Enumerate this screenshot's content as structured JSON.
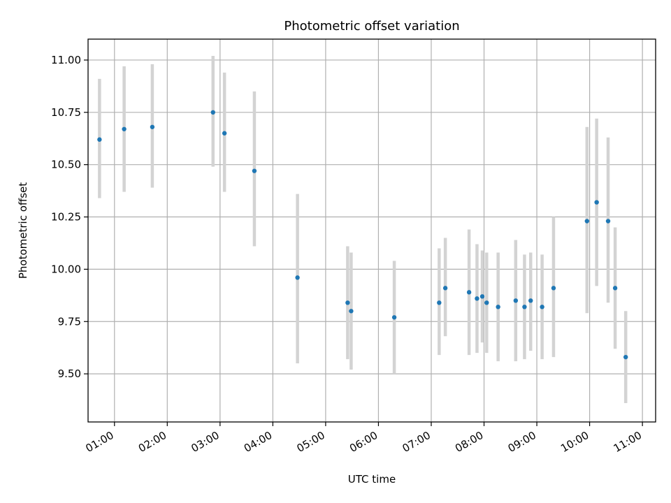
{
  "chart_data": {
    "type": "scatter",
    "title": "Photometric offset variation",
    "xlabel": "UTC time",
    "ylabel": "Photometric offset",
    "x_unit": "hours UTC",
    "xlim": [
      "00:30",
      "11:15"
    ],
    "ylim": [
      9.27,
      11.1
    ],
    "grid": true,
    "x_ticks": [
      "01:00",
      "02:00",
      "03:00",
      "04:00",
      "05:00",
      "06:00",
      "07:00",
      "08:00",
      "09:00",
      "10:00",
      "11:00"
    ],
    "y_ticks": [
      "9.50",
      "9.75",
      "10.00",
      "10.25",
      "10.50",
      "10.75",
      "11.00"
    ],
    "point_color": "#1f77b4",
    "errorbar_color": "#d3d3d3",
    "series": [
      {
        "points": [
          {
            "x": "00:43",
            "y": 10.62,
            "err_low": 10.34,
            "err_high": 10.91
          },
          {
            "x": "01:11",
            "y": 10.67,
            "err_low": 10.37,
            "err_high": 10.97
          },
          {
            "x": "01:43",
            "y": 10.68,
            "err_low": 10.39,
            "err_high": 10.98
          },
          {
            "x": "02:52",
            "y": 10.75,
            "err_low": 10.49,
            "err_high": 11.02
          },
          {
            "x": "03:05",
            "y": 10.65,
            "err_low": 10.37,
            "err_high": 10.94
          },
          {
            "x": "03:39",
            "y": 10.47,
            "err_low": 10.11,
            "err_high": 10.85
          },
          {
            "x": "04:28",
            "y": 9.96,
            "err_low": 9.55,
            "err_high": 10.36
          },
          {
            "x": "05:25",
            "y": 9.84,
            "err_low": 9.57,
            "err_high": 10.11
          },
          {
            "x": "05:29",
            "y": 9.8,
            "err_low": 9.52,
            "err_high": 10.08
          },
          {
            "x": "06:18",
            "y": 9.77,
            "err_low": 9.5,
            "err_high": 10.04
          },
          {
            "x": "07:09",
            "y": 9.84,
            "err_low": 9.59,
            "err_high": 10.1
          },
          {
            "x": "07:16",
            "y": 9.91,
            "err_low": 9.68,
            "err_high": 10.15
          },
          {
            "x": "07:43",
            "y": 9.89,
            "err_low": 9.59,
            "err_high": 10.19
          },
          {
            "x": "07:52",
            "y": 9.86,
            "err_low": 9.6,
            "err_high": 10.12
          },
          {
            "x": "07:58",
            "y": 9.87,
            "err_low": 9.65,
            "err_high": 10.09
          },
          {
            "x": "08:03",
            "y": 9.84,
            "err_low": 9.6,
            "err_high": 10.08
          },
          {
            "x": "08:16",
            "y": 9.82,
            "err_low": 9.56,
            "err_high": 10.08
          },
          {
            "x": "08:36",
            "y": 9.85,
            "err_low": 9.56,
            "err_high": 10.14
          },
          {
            "x": "08:46",
            "y": 9.82,
            "err_low": 9.57,
            "err_high": 10.07
          },
          {
            "x": "08:53",
            "y": 9.85,
            "err_low": 9.61,
            "err_high": 10.08
          },
          {
            "x": "09:06",
            "y": 9.82,
            "err_low": 9.57,
            "err_high": 10.07
          },
          {
            "x": "09:19",
            "y": 9.91,
            "err_low": 9.58,
            "err_high": 10.25
          },
          {
            "x": "09:57",
            "y": 10.23,
            "err_low": 9.79,
            "err_high": 10.68
          },
          {
            "x": "10:08",
            "y": 10.32,
            "err_low": 9.92,
            "err_high": 10.72
          },
          {
            "x": "10:21",
            "y": 10.23,
            "err_low": 9.84,
            "err_high": 10.63
          },
          {
            "x": "10:29",
            "y": 9.91,
            "err_low": 9.62,
            "err_high": 10.2
          },
          {
            "x": "10:41",
            "y": 9.58,
            "err_low": 9.36,
            "err_high": 9.8
          }
        ]
      }
    ]
  }
}
